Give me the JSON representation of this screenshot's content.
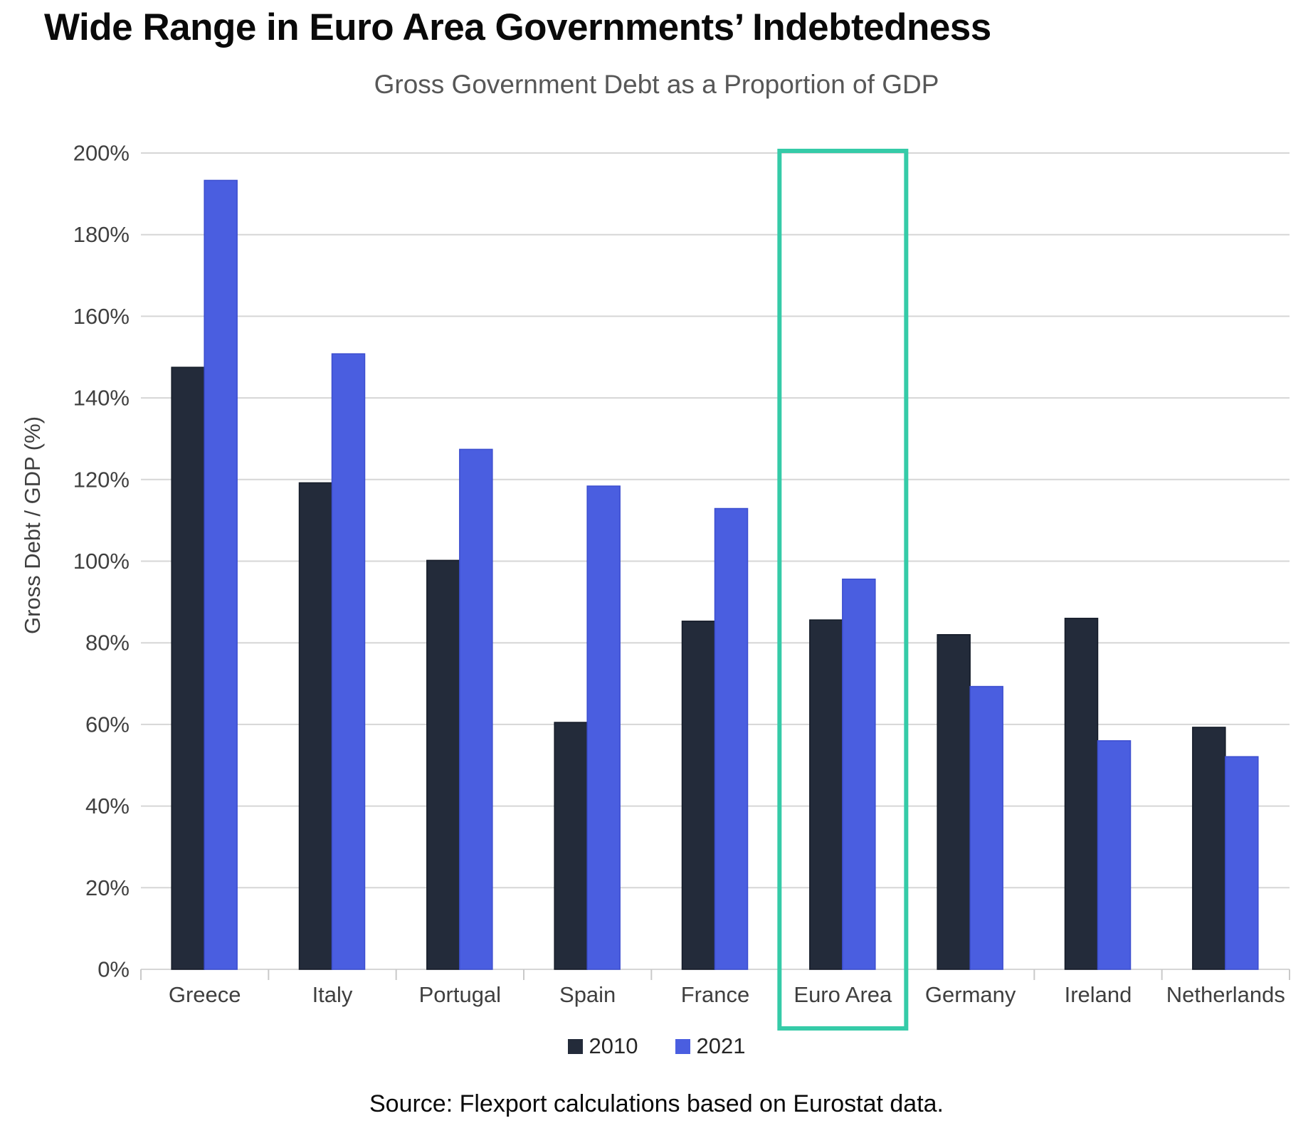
{
  "title": "Wide Range in Euro Area Governments’ Indebtedness",
  "subtitle": "Gross Government Debt as a Proportion of GDP",
  "y_axis_label": "Gross Debt / GDP (%)",
  "source": "Source: Flexport calculations based on Eurostat data.",
  "legend": [
    {
      "label": "2010",
      "color": "#232B3A"
    },
    {
      "label": "2021",
      "color": "#4A5EE0"
    }
  ],
  "colors": {
    "bar_2010": "#232B3A",
    "bar_2010_stroke": "#141B28",
    "bar_2021": "#4A5EE0",
    "bar_2021_stroke": "#3C4ECF",
    "highlight": "#35CBA8",
    "gridline": "#D6D6D6",
    "axis_tick": "#C9C9C9",
    "tick_label": "#404040",
    "category_label": "#3F3F3F"
  },
  "chart_data": {
    "type": "bar",
    "title": "Gross Government Debt as a Proportion of GDP",
    "xlabel": "",
    "ylabel": "Gross Debt / GDP (%)",
    "ylim": [
      0,
      200
    ],
    "ytick_step": 20,
    "y_tick_labels": [
      "0%",
      "20%",
      "40%",
      "60%",
      "80%",
      "100%",
      "120%",
      "140%",
      "160%",
      "180%",
      "200%"
    ],
    "grid": true,
    "legend_position": "bottom",
    "categories": [
      "Greece",
      "Italy",
      "Portugal",
      "Spain",
      "France",
      "Euro Area",
      "Germany",
      "Ireland",
      "Netherlands"
    ],
    "series": [
      {
        "name": "2010",
        "values": [
          147.5,
          119.2,
          100.2,
          60.5,
          85.3,
          85.6,
          82.0,
          86.0,
          59.3
        ]
      },
      {
        "name": "2021",
        "values": [
          193.3,
          150.8,
          127.4,
          118.4,
          112.9,
          95.6,
          69.3,
          56.0,
          52.1
        ]
      }
    ],
    "highlight": {
      "category": "Euro Area"
    }
  }
}
